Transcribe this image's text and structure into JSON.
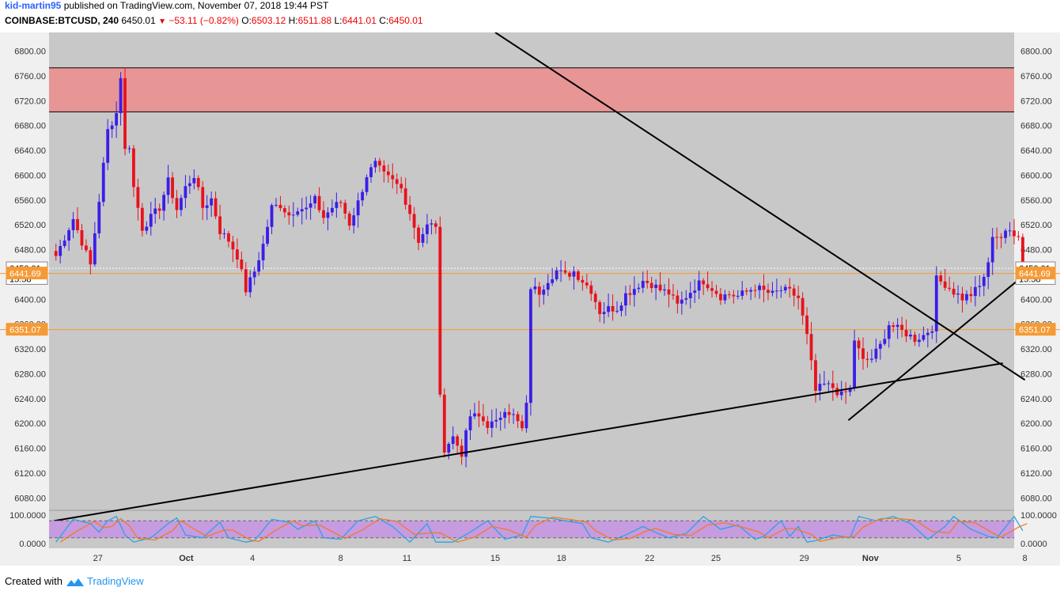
{
  "header": {
    "author": "kid-martin95",
    "published_text": "published on TradingView.com, November 07, 2018 19:44 PST",
    "symbol": "COINBASE:BTCUSD, 240",
    "last": "6450.01",
    "change": "−53.11 (−0.82%)",
    "o_label": "O:",
    "o": "6503.12",
    "h_label": "H:",
    "h": "6511.88",
    "l_label": "L:",
    "l": "6441.01",
    "c_label": "C:",
    "c": "6450.01"
  },
  "footer": {
    "created_with": "Created with",
    "brand": "TradingView"
  },
  "colors": {
    "up": "#3a1ee8",
    "down": "#e8121c",
    "background": "#c8c8c8",
    "resistance_zone": "#e89596",
    "orange_line": "#f59a35",
    "stoch_band": "#c79be0",
    "stoch_k": "#29a3e6",
    "stoch_d": "#f07a2a"
  },
  "chart_data": {
    "type": "candlestick",
    "ylim": [
      6060,
      6830
    ],
    "price_ticks": [
      "6800.00",
      "6760.00",
      "6720.00",
      "6680.00",
      "6640.00",
      "6600.00",
      "6560.00",
      "6520.00",
      "6480.00",
      "6440.00",
      "6400.00",
      "6360.00",
      "6320.00",
      "6280.00",
      "6240.00",
      "6200.00",
      "6160.00",
      "6120.00",
      "6080.00"
    ],
    "x_ticks": [
      "27",
      "Oct",
      "4",
      "8",
      "11",
      "15",
      "18",
      "22",
      "25",
      "29",
      "Nov",
      "5",
      "8"
    ],
    "resistance_zone": [
      6702,
      6773
    ],
    "price_labels": [
      {
        "text": "6450.01",
        "value": 6450.01,
        "style": "last"
      },
      {
        "text": "15:58",
        "value": 6433,
        "style": "countdown"
      },
      {
        "text": "6441.69",
        "value": 6441.69,
        "style": "orange"
      },
      {
        "text": "6351.07",
        "value": 6351.07,
        "style": "orange"
      }
    ],
    "horizontal_lines": [
      6441.69,
      6351.07
    ],
    "trendlines": [
      {
        "from": [
          "Sep 25",
          6043
        ],
        "to": [
          "Nov 7",
          6297
        ]
      },
      {
        "from": [
          "Oct 15",
          6830
        ],
        "to": [
          "Nov 8",
          6270
        ]
      },
      {
        "from": [
          "Oct 31",
          6205
        ],
        "to": [
          "Nov 8",
          6440
        ]
      }
    ],
    "candles_from": "Sep 25 2018",
    "candles_to": "Nov 8 2018",
    "candle_interval": "240",
    "candle_keypoints": [
      [
        0,
        6470
      ],
      [
        4,
        6530
      ],
      [
        8,
        6455
      ],
      [
        10,
        6560
      ],
      [
        12,
        6672
      ],
      [
        14,
        6700
      ],
      [
        15,
        6760
      ],
      [
        16,
        6640
      ],
      [
        17,
        6648
      ],
      [
        18,
        6580
      ],
      [
        20,
        6515
      ],
      [
        24,
        6548
      ],
      [
        26,
        6590
      ],
      [
        28,
        6545
      ],
      [
        30,
        6580
      ],
      [
        32,
        6600
      ],
      [
        34,
        6548
      ],
      [
        36,
        6562
      ],
      [
        38,
        6510
      ],
      [
        40,
        6495
      ],
      [
        42,
        6470
      ],
      [
        44,
        6415
      ],
      [
        46,
        6445
      ],
      [
        48,
        6488
      ],
      [
        50,
        6548
      ],
      [
        52,
        6552
      ],
      [
        54,
        6536
      ],
      [
        56,
        6548
      ],
      [
        58,
        6545
      ],
      [
        60,
        6560
      ],
      [
        62,
        6532
      ],
      [
        64,
        6548
      ],
      [
        66,
        6556
      ],
      [
        68,
        6522
      ],
      [
        70,
        6556
      ],
      [
        72,
        6600
      ],
      [
        74,
        6618
      ],
      [
        76,
        6600
      ],
      [
        78,
        6590
      ],
      [
        80,
        6578
      ],
      [
        82,
        6540
      ],
      [
        84,
        6495
      ],
      [
        86,
        6518
      ],
      [
        88,
        6520
      ],
      [
        89,
        6240
      ],
      [
        90,
        6160
      ],
      [
        92,
        6178
      ],
      [
        94,
        6152
      ],
      [
        96,
        6212
      ],
      [
        98,
        6210
      ],
      [
        100,
        6198
      ],
      [
        102,
        6200
      ],
      [
        104,
        6225
      ],
      [
        106,
        6212
      ],
      [
        108,
        6190
      ],
      [
        109,
        6228
      ],
      [
        110,
        6420
      ],
      [
        112,
        6412
      ],
      [
        114,
        6432
      ],
      [
        116,
        6446
      ],
      [
        118,
        6438
      ],
      [
        120,
        6445
      ],
      [
        122,
        6430
      ],
      [
        124,
        6415
      ],
      [
        126,
        6380
      ],
      [
        128,
        6385
      ],
      [
        130,
        6386
      ],
      [
        132,
        6408
      ],
      [
        134,
        6418
      ],
      [
        136,
        6430
      ],
      [
        138,
        6425
      ],
      [
        140,
        6415
      ],
      [
        142,
        6410
      ],
      [
        144,
        6390
      ],
      [
        146,
        6405
      ],
      [
        148,
        6420
      ],
      [
        150,
        6430
      ],
      [
        152,
        6418
      ],
      [
        154,
        6405
      ],
      [
        156,
        6408
      ],
      [
        158,
        6405
      ],
      [
        160,
        6412
      ],
      [
        162,
        6420
      ],
      [
        164,
        6413
      ],
      [
        166,
        6408
      ],
      [
        168,
        6415
      ],
      [
        170,
        6412
      ],
      [
        172,
        6402
      ],
      [
        174,
        6340
      ],
      [
        176,
        6252
      ],
      [
        178,
        6262
      ],
      [
        180,
        6258
      ],
      [
        182,
        6245
      ],
      [
        184,
        6255
      ],
      [
        185,
        6335
      ],
      [
        187,
        6300
      ],
      [
        189,
        6305
      ],
      [
        191,
        6325
      ],
      [
        193,
        6360
      ],
      [
        195,
        6352
      ],
      [
        197,
        6345
      ],
      [
        199,
        6336
      ],
      [
        201,
        6342
      ],
      [
        203,
        6355
      ],
      [
        204,
        6432
      ],
      [
        206,
        6425
      ],
      [
        208,
        6412
      ],
      [
        210,
        6402
      ],
      [
        212,
        6408
      ],
      [
        214,
        6420
      ],
      [
        216,
        6455
      ],
      [
        217,
        6505
      ],
      [
        219,
        6500
      ],
      [
        221,
        6510
      ],
      [
        223,
        6505
      ],
      [
        224,
        6450.01
      ]
    ]
  },
  "stoch_rsi": {
    "ticks": [
      "100.0000",
      "0.0000"
    ],
    "upper_band": 80,
    "lower_band": 20,
    "k_keypoints": [
      [
        0,
        5
      ],
      [
        4,
        85
      ],
      [
        8,
        70
      ],
      [
        10,
        40
      ],
      [
        12,
        80
      ],
      [
        14,
        95
      ],
      [
        16,
        30
      ],
      [
        18,
        5
      ],
      [
        22,
        20
      ],
      [
        26,
        70
      ],
      [
        28,
        90
      ],
      [
        30,
        30
      ],
      [
        34,
        20
      ],
      [
        38,
        75
      ],
      [
        40,
        20
      ],
      [
        44,
        5
      ],
      [
        46,
        10
      ],
      [
        50,
        85
      ],
      [
        54,
        75
      ],
      [
        56,
        50
      ],
      [
        60,
        80
      ],
      [
        62,
        20
      ],
      [
        66,
        15
      ],
      [
        70,
        80
      ],
      [
        74,
        95
      ],
      [
        78,
        60
      ],
      [
        82,
        5
      ],
      [
        86,
        70
      ],
      [
        88,
        5
      ],
      [
        92,
        5
      ],
      [
        96,
        40
      ],
      [
        100,
        80
      ],
      [
        104,
        15
      ],
      [
        108,
        30
      ],
      [
        110,
        95
      ],
      [
        114,
        90
      ],
      [
        118,
        80
      ],
      [
        122,
        70
      ],
      [
        124,
        20
      ],
      [
        128,
        5
      ],
      [
        132,
        30
      ],
      [
        136,
        60
      ],
      [
        138,
        45
      ],
      [
        142,
        20
      ],
      [
        146,
        35
      ],
      [
        150,
        95
      ],
      [
        154,
        50
      ],
      [
        158,
        65
      ],
      [
        162,
        15
      ],
      [
        164,
        25
      ],
      [
        168,
        80
      ],
      [
        170,
        25
      ],
      [
        172,
        60
      ],
      [
        174,
        5
      ],
      [
        176,
        10
      ],
      [
        180,
        30
      ],
      [
        184,
        20
      ],
      [
        186,
        95
      ],
      [
        190,
        80
      ],
      [
        194,
        95
      ],
      [
        198,
        70
      ],
      [
        202,
        15
      ],
      [
        206,
        60
      ],
      [
        208,
        95
      ],
      [
        212,
        50
      ],
      [
        216,
        25
      ],
      [
        218,
        20
      ],
      [
        222,
        95
      ],
      [
        224,
        45
      ]
    ]
  }
}
